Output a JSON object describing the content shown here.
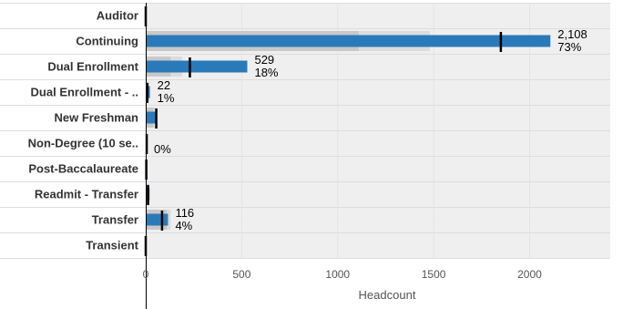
{
  "chart_data": {
    "type": "bar",
    "orientation": "horizontal",
    "subtype": "bullet",
    "categories": [
      "Auditor",
      "Continuing",
      "Dual Enrollment",
      "Dual Enrollment  - ..",
      "New Freshman",
      "Non-Degree (10 se..",
      "Post-Baccalaureate",
      "Readmit - Transfer",
      "Transfer",
      "Transient"
    ],
    "series": [
      {
        "values": [
          0,
          2108,
          529,
          22,
          50,
          3,
          5,
          20,
          116,
          0
        ]
      }
    ],
    "reference_markers": [
      0,
      1850,
      230,
      8,
      55,
      5,
      3,
      12,
      85,
      0
    ],
    "background_bands": [
      [
        0,
        0
      ],
      [
        1110,
        1480
      ],
      [
        130,
        190
      ],
      [
        15,
        20
      ],
      [
        40,
        60
      ],
      [
        5,
        8
      ],
      [
        3,
        5
      ],
      [
        15,
        20
      ],
      [
        110,
        130
      ],
      [
        0,
        0
      ]
    ],
    "value_labels": [
      "",
      "2,108",
      "529",
      "22",
      "",
      "",
      "",
      "",
      "116",
      ""
    ],
    "percent_labels": [
      "",
      "73%",
      "18%",
      "1%",
      "",
      "0%",
      "",
      "",
      "4%",
      ""
    ],
    "xlabel": "Headcount",
    "x_ticks": [
      0,
      500,
      1000,
      1500,
      2000
    ],
    "xlim": [
      0,
      2420
    ],
    "colors": {
      "bar": "#2a7ab9",
      "band_dark": "#c8c8c8",
      "band_light": "#dcdcdc",
      "marker": "#000000",
      "plot_bg": "#efefef"
    }
  }
}
